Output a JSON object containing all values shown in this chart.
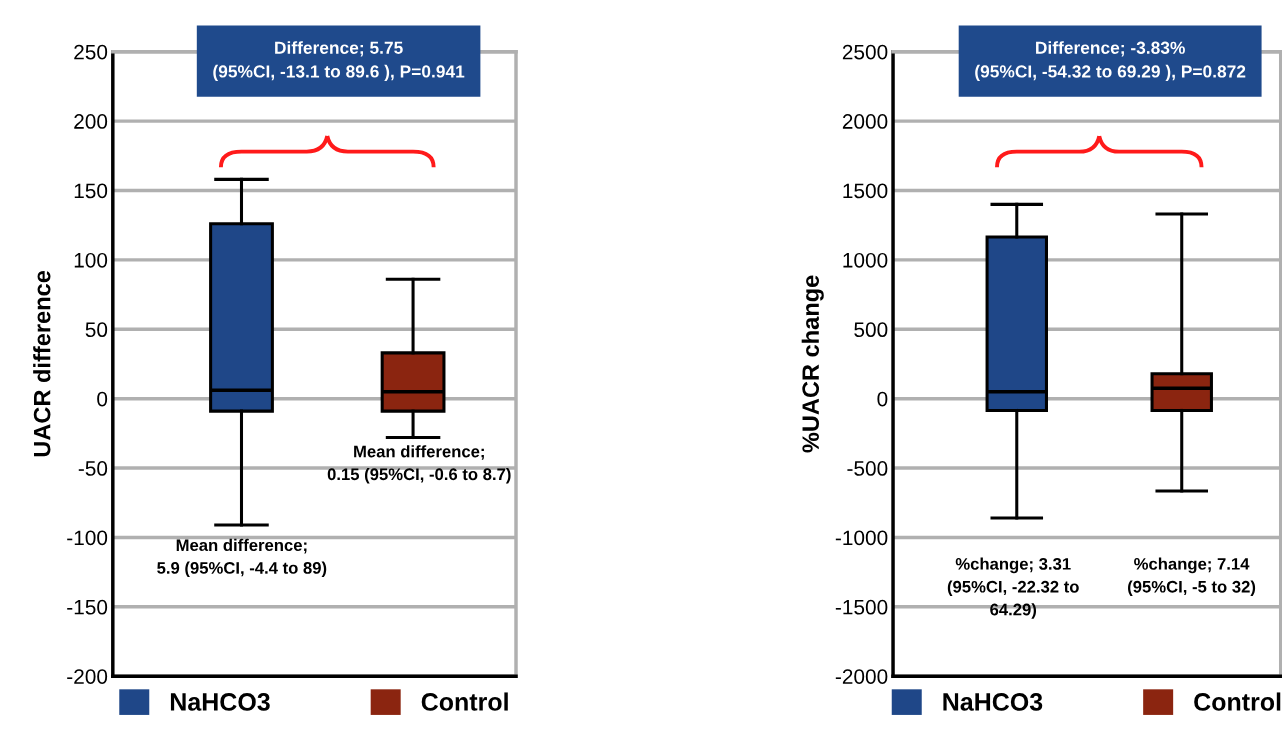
{
  "chart_data": [
    {
      "type": "box",
      "ylabel": "UACR difference",
      "categories": [
        null,
        null
      ],
      "series": [
        {
          "name": "NaHCO3",
          "color": "#1f4788",
          "boxes": [
            {
              "low": -91,
              "q1": -9,
              "median": 6,
              "q3": 126,
              "high": 158
            },
            null
          ]
        },
        {
          "name": "Control",
          "color": "#8b2510",
          "boxes": [
            null,
            {
              "low": -28,
              "q1": -9,
              "median": 5,
              "q3": 33,
              "high": 86
            }
          ]
        }
      ],
      "ylim": [
        -200,
        250
      ],
      "yticks": [
        -200,
        -150,
        -100,
        -50,
        0,
        50,
        100,
        150,
        200,
        250
      ],
      "grid": "y",
      "legend": "bottom",
      "annotations": [
        "Difference; 5.75\n(95%CI, -13.1 to 89.6 ), P=0.941",
        "Mean difference;\n5.9 (95%CI, -4.4 to 89)",
        "Mean difference;\n0.15 (95%CI, -0.6 to 8.7)"
      ]
    },
    {
      "type": "box",
      "ylabel": "%UACR change",
      "categories": [
        null,
        null
      ],
      "series": [
        {
          "name": "NaHCO3",
          "color": "#1f4788",
          "boxes": [
            {
              "low": -860,
              "q1": -85,
              "median": 50,
              "q3": 1165,
              "high": 1400
            },
            null
          ]
        },
        {
          "name": "Control",
          "color": "#8b2510",
          "boxes": [
            null,
            {
              "low": -665,
              "q1": -85,
              "median": 75,
              "q3": 180,
              "high": 1330
            }
          ]
        }
      ],
      "ylim": [
        -2000,
        2500
      ],
      "yticks": [
        -2000,
        -1500,
        -1000,
        -500,
        0,
        500,
        1000,
        1500,
        2000,
        2500
      ],
      "grid": "y",
      "legend": "bottom",
      "annotations": [
        "Difference; -3.83%\n(95%CI, -54.32 to 69.29 ), P=0.872",
        "%change; 3.31\n(95%CI, -22.32 to\n64.29)",
        "%change; 7.14\n(95%CI, -5 to 32)"
      ]
    }
  ]
}
